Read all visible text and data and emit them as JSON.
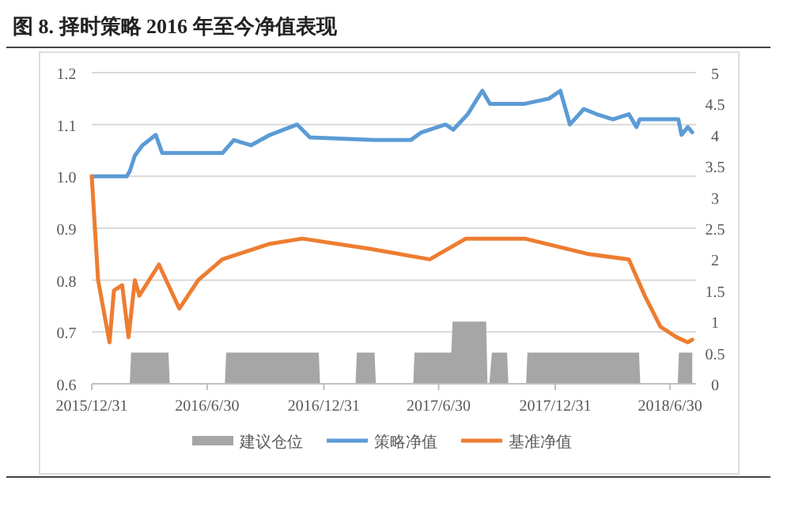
{
  "chart_data": {
    "type": "line",
    "title": "图 8. 择时策略 2016 年至今净值表现",
    "xlim": [
      "2015-12-31",
      "2018-08-10"
    ],
    "xticks": [
      {
        "value": "2015-12-31",
        "label": "2015/12/31"
      },
      {
        "value": "2016-06-30",
        "label": "2016/6/30"
      },
      {
        "value": "2016-12-31",
        "label": "2016/12/31"
      },
      {
        "value": "2017-06-30",
        "label": "2017/6/30"
      },
      {
        "value": "2017-12-31",
        "label": "2017/12/31"
      },
      {
        "value": "2018-06-30",
        "label": "2018/6/30"
      }
    ],
    "ylim": [
      0.6,
      1.2
    ],
    "yticks": [
      {
        "value": 0.6,
        "label": "0.6"
      },
      {
        "value": 0.7,
        "label": "0.7"
      },
      {
        "value": 0.8,
        "label": "0.8"
      },
      {
        "value": 0.9,
        "label": "0.9"
      },
      {
        "value": 1,
        "label": "1.0"
      },
      {
        "value": 1.1,
        "label": "1.1"
      },
      {
        "value": 1.2,
        "label": "1.2"
      }
    ],
    "y2lim": [
      0,
      5
    ],
    "y2ticks": [
      0,
      0.5,
      1,
      1.5,
      2,
      2.5,
      3,
      3.5,
      4,
      4.5,
      5
    ],
    "grid": "y",
    "legend": "bottom",
    "series": [
      {
        "name": "建议仓位",
        "type": "area",
        "axis": "y2",
        "color": "#a6a6a6",
        "x": [
          "2015-12-31",
          "2016-02-29",
          "2016-03-02",
          "2016-04-30",
          "2016-05-02",
          "2016-07-28",
          "2016-07-30",
          "2016-12-23",
          "2016-12-25",
          "2017-02-19",
          "2017-02-21",
          "2017-03-21",
          "2017-03-23",
          "2017-05-21",
          "2017-05-23",
          "2017-07-20",
          "2017-07-22",
          "2017-09-13",
          "2017-09-15",
          "2017-09-18",
          "2017-09-22",
          "2017-10-16",
          "2017-10-18",
          "2017-11-15",
          "2017-11-17",
          "2018-05-12",
          "2018-05-14",
          "2018-07-12",
          "2018-07-14",
          "2018-08-04"
        ],
        "values": [
          0,
          0,
          0.5,
          0.5,
          0,
          0,
          0.5,
          0.5,
          0,
          0,
          0.5,
          0.5,
          0,
          0,
          0.5,
          0.5,
          1,
          1,
          0,
          0,
          0.5,
          0.5,
          0,
          0,
          0.5,
          0.5,
          0,
          0,
          0.5,
          0.5
        ]
      },
      {
        "name": "策略净值",
        "color": "#5b9bd5",
        "x": [
          "2015-12-31",
          "2016-02-24",
          "2016-02-29",
          "2016-03-08",
          "2016-03-20",
          "2016-04-10",
          "2016-04-20",
          "2016-07-24",
          "2016-08-11",
          "2016-09-07",
          "2016-10-07",
          "2016-11-19",
          "2016-12-09",
          "2017-03-20",
          "2017-05-17",
          "2017-06-03",
          "2017-07-11",
          "2017-07-23",
          "2017-08-15",
          "2017-08-30",
          "2017-09-07",
          "2017-09-19",
          "2017-11-13",
          "2017-12-21",
          "2018-01-08",
          "2018-01-23",
          "2018-02-14",
          "2018-03-06",
          "2018-04-01",
          "2018-04-26",
          "2018-05-08",
          "2018-05-13",
          "2018-07-13",
          "2018-07-18",
          "2018-07-28",
          "2018-08-04"
        ],
        "values": [
          1,
          1,
          1.01,
          1.04,
          1.06,
          1.08,
          1.045,
          1.045,
          1.07,
          1.06,
          1.08,
          1.1,
          1.075,
          1.07,
          1.07,
          1.085,
          1.1,
          1.09,
          1.12,
          1.15,
          1.165,
          1.14,
          1.14,
          1.15,
          1.165,
          1.1,
          1.13,
          1.12,
          1.11,
          1.12,
          1.095,
          1.11,
          1.11,
          1.08,
          1.095,
          1.085
        ]
      },
      {
        "name": "基准净值",
        "color": "#ed7d31",
        "x": [
          "2015-12-31",
          "2016-01-10",
          "2016-01-28",
          "2016-02-04",
          "2016-02-17",
          "2016-02-27",
          "2016-03-08",
          "2016-03-15",
          "2016-04-15",
          "2016-05-17",
          "2016-06-16",
          "2016-07-24",
          "2016-10-07",
          "2016-11-27",
          "2017-03-15",
          "2017-06-16",
          "2017-08-12",
          "2017-11-13",
          "2018-02-22",
          "2018-04-26",
          "2018-05-21",
          "2018-06-15",
          "2018-07-10",
          "2018-07-28",
          "2018-08-04"
        ],
        "values": [
          1,
          0.8,
          0.68,
          0.78,
          0.79,
          0.69,
          0.8,
          0.77,
          0.83,
          0.745,
          0.8,
          0.84,
          0.87,
          0.88,
          0.86,
          0.84,
          0.88,
          0.88,
          0.85,
          0.84,
          0.77,
          0.71,
          0.69,
          0.68,
          0.685
        ]
      }
    ]
  }
}
